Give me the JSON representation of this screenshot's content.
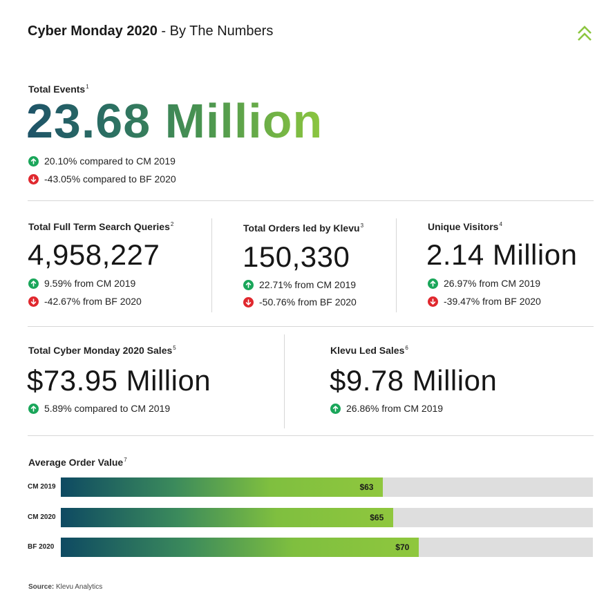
{
  "header": {
    "title_bold": "Cyber Monday 2020",
    "title_light": " - By The Numbers",
    "logo_icon": "double-chevron-up-icon"
  },
  "total_events": {
    "label": "Total Events",
    "footnote": "1",
    "value": "23.68 Million",
    "changes": [
      {
        "direction": "up",
        "text": "20.10% compared to CM 2019"
      },
      {
        "direction": "down",
        "text": "-43.05% compared to BF 2020"
      }
    ]
  },
  "row2": [
    {
      "label": "Total Full Term Search Queries",
      "footnote": "2",
      "value": "4,958,227",
      "changes": [
        {
          "direction": "up",
          "text": "9.59% from CM 2019"
        },
        {
          "direction": "down",
          "text": "-42.67% from BF 2020"
        }
      ]
    },
    {
      "label": "Total Orders led by Klevu",
      "footnote": "3",
      "value": "150,330",
      "changes": [
        {
          "direction": "up",
          "text": "22.71% from CM 2019"
        },
        {
          "direction": "down",
          "text": "-50.76% from BF 2020"
        }
      ]
    },
    {
      "label": "Unique Visitors",
      "footnote": "4",
      "value": "2.14 Million",
      "changes": [
        {
          "direction": "up",
          "text": "26.97% from CM 2019"
        },
        {
          "direction": "down",
          "text": "-39.47% from BF 2020"
        }
      ]
    }
  ],
  "row3": [
    {
      "label": "Total Cyber Monday 2020 Sales",
      "footnote": "5",
      "value": "$73.95 Million",
      "changes": [
        {
          "direction": "up",
          "text": "5.89% compared to CM 2019"
        }
      ]
    },
    {
      "label": "Klevu Led Sales",
      "footnote": "6",
      "value": "$9.78 Million",
      "changes": [
        {
          "direction": "up",
          "text": "26.86% from CM 2019"
        }
      ]
    }
  ],
  "chart_data": {
    "type": "bar",
    "title": "Average Order Value",
    "title_footnote": "7",
    "orientation": "horizontal",
    "categories": [
      "CM 2019",
      "CM 2020",
      "BF 2020"
    ],
    "values": [
      63,
      65,
      70
    ],
    "value_labels": [
      "$63",
      "$65",
      "$70"
    ],
    "xlim": [
      0,
      104
    ],
    "colors": {
      "fill_start": "#0e4a62",
      "fill_end": "#8fc73e",
      "track": "#dedede"
    }
  },
  "source": {
    "label": "Source:",
    "text": " Klevu Analytics"
  },
  "colors": {
    "up": "#1aa65a",
    "down": "#e0282e",
    "accent": "#8cc63f",
    "hero_start": "#1e5368"
  }
}
